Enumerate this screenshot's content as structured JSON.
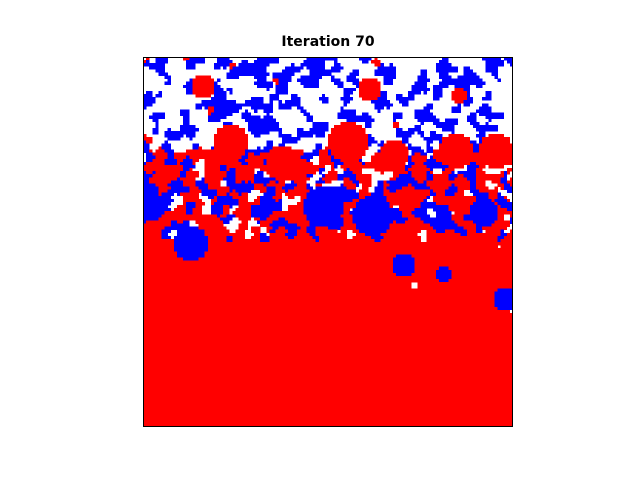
{
  "chart_data": {
    "type": "heatmap",
    "title": "Iteration 70",
    "xlabel": "",
    "ylabel": "",
    "axes_ticks": "none",
    "grid": false,
    "legend": "none",
    "grid_size": [
      120,
      120
    ],
    "states": [
      {
        "value": 0,
        "color": "#ffffff"
      },
      {
        "value": 1,
        "color": "#0000ff"
      },
      {
        "value": 2,
        "color": "#ff0000"
      }
    ],
    "approx_fraction_by_row_band": [
      {
        "rows": [
          0,
          30
        ],
        "white": 0.5,
        "blue": 0.4,
        "red": 0.1
      },
      {
        "rows": [
          30,
          60
        ],
        "white": 0.25,
        "blue": 0.35,
        "red": 0.4
      },
      {
        "rows": [
          60,
          85
        ],
        "white": 0.12,
        "blue": 0.1,
        "red": 0.78
      },
      {
        "rows": [
          85,
          120
        ],
        "white": 0.02,
        "blue": 0.01,
        "red": 0.97
      }
    ],
    "blobs": [
      {
        "state": "red",
        "cx": 66,
        "cy": 27,
        "r": 7
      },
      {
        "state": "red",
        "cx": 81,
        "cy": 31,
        "r": 5
      },
      {
        "state": "red",
        "cx": 101,
        "cy": 30,
        "r": 6
      },
      {
        "state": "red",
        "cx": 114,
        "cy": 30,
        "r": 6
      },
      {
        "state": "red",
        "cx": 19,
        "cy": 9,
        "r": 4
      },
      {
        "state": "red",
        "cx": 28,
        "cy": 27,
        "r": 6
      },
      {
        "state": "red",
        "cx": 45,
        "cy": 34,
        "r": 6
      },
      {
        "state": "red",
        "cx": 73,
        "cy": 10,
        "r": 4
      },
      {
        "state": "red",
        "cx": 102,
        "cy": 12,
        "r": 3
      },
      {
        "state": "blue",
        "cx": 74,
        "cy": 51,
        "r": 7
      },
      {
        "state": "blue",
        "cx": 58,
        "cy": 48,
        "r": 7
      },
      {
        "state": "blue",
        "cx": 110,
        "cy": 50,
        "r": 5
      },
      {
        "state": "blue",
        "cx": 84,
        "cy": 67,
        "r": 4
      },
      {
        "state": "blue",
        "cx": 15,
        "cy": 60,
        "r": 6
      },
      {
        "state": "blue",
        "cx": 117,
        "cy": 78,
        "r": 4
      },
      {
        "state": "blue",
        "cx": 97,
        "cy": 70,
        "r": 3
      },
      {
        "state": "blue",
        "cx": 2,
        "cy": 48,
        "r": 5
      }
    ]
  }
}
